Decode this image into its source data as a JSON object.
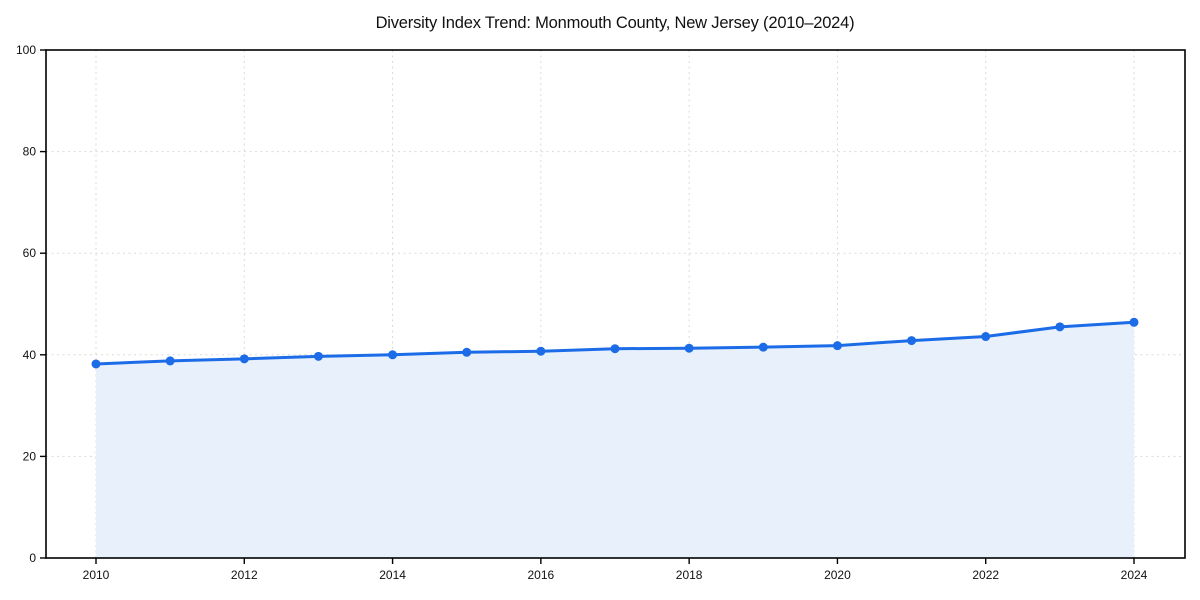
{
  "figure": {
    "background_color": "#ffffff"
  },
  "chart_data": {
    "type": "area",
    "title": "Diversity Index Trend: Monmouth County, New Jersey (2010–2024)",
    "x": [
      2010,
      2011,
      2012,
      2013,
      2014,
      2015,
      2016,
      2017,
      2018,
      2019,
      2020,
      2021,
      2022,
      2023,
      2024
    ],
    "series": [
      {
        "name": "Diversity Index",
        "values": [
          38.2,
          38.8,
          39.2,
          39.7,
          40.0,
          40.5,
          40.7,
          41.2,
          41.3,
          41.5,
          41.8,
          42.8,
          43.6,
          45.5,
          46.4
        ]
      }
    ],
    "xlabel": "",
    "ylabel": "",
    "ylim": [
      0,
      100
    ],
    "yticks": [
      0,
      20,
      40,
      60,
      80,
      100
    ],
    "xticks": [
      2010,
      2012,
      2014,
      2016,
      2018,
      2020,
      2022,
      2024
    ],
    "grid": true,
    "grid_style": "dashed",
    "legend": false,
    "marker": "circle",
    "colors": {
      "line": "#1c6ce8",
      "marker": "#1c6ce8",
      "area_fill": "#e8f0fc",
      "grid": "#d9d9d9",
      "spine": "#000000",
      "tick_text": "#111111",
      "title_text": "#111111"
    }
  }
}
